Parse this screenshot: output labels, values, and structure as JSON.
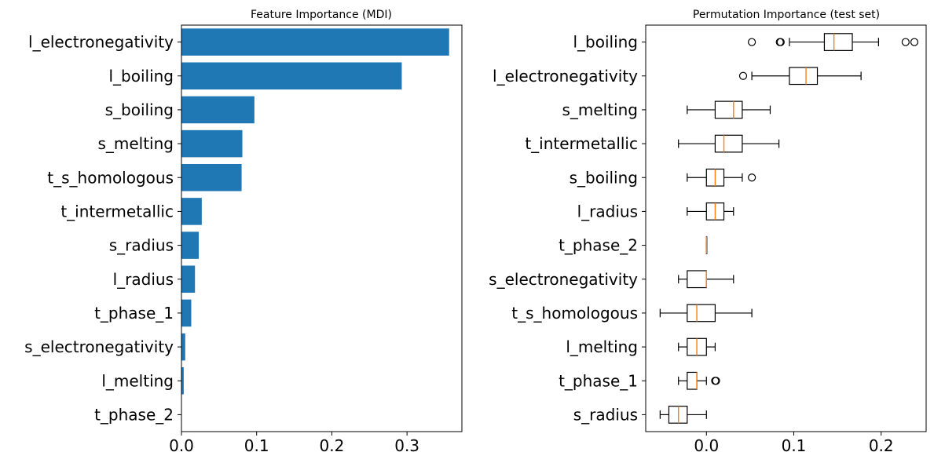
{
  "chart_data": [
    {
      "type": "bar",
      "orientation": "horizontal",
      "title": "Feature Importance (MDI)",
      "xlabel": "",
      "ylabel": "",
      "xlim": [
        0,
        0.373
      ],
      "xticks": [
        "0.0",
        "0.1",
        "0.2",
        "0.3"
      ],
      "xtick_values": [
        0.0,
        0.1,
        0.2,
        0.3
      ],
      "color": "#1f77b4",
      "categories": [
        "l_electronegativity",
        "l_boiling",
        "s_boiling",
        "s_melting",
        "t_s_homologous",
        "t_intermetallic",
        "s_radius",
        "l_radius",
        "t_phase_1",
        "s_electronegativity",
        "l_melting",
        "t_phase_2"
      ],
      "values": [
        0.356,
        0.293,
        0.097,
        0.081,
        0.08,
        0.027,
        0.023,
        0.018,
        0.013,
        0.005,
        0.003,
        0.0
      ]
    },
    {
      "type": "box",
      "orientation": "horizontal",
      "title": "Permutation Importance (test set)",
      "xlabel": "",
      "ylabel": "",
      "xlim": [
        -0.0695,
        0.2515
      ],
      "xticks": [
        "0.0",
        "0.1",
        "0.2"
      ],
      "xtick_values": [
        0.0,
        0.1,
        0.2
      ],
      "box_color": "#000000",
      "median_color": "#ff7f0e",
      "categories": [
        "l_boiling",
        "l_electronegativity",
        "s_melting",
        "t_intermetallic",
        "s_boiling",
        "l_radius",
        "t_phase_2",
        "s_electronegativity",
        "t_s_homologous",
        "l_melting",
        "t_phase_1",
        "s_radius"
      ],
      "boxes": [
        {
          "whislo": 0.095,
          "q1": 0.135,
          "med": 0.146,
          "q3": 0.167,
          "whishi": 0.197,
          "fliers": [
            0.052,
            0.084,
            0.085,
            0.228,
            0.238
          ]
        },
        {
          "whislo": 0.052,
          "q1": 0.095,
          "med": 0.114,
          "q3": 0.127,
          "whishi": 0.177,
          "fliers": [
            0.042
          ]
        },
        {
          "whislo": -0.022,
          "q1": 0.01,
          "med": 0.031,
          "q3": 0.041,
          "whishi": 0.073,
          "fliers": []
        },
        {
          "whislo": -0.032,
          "q1": 0.01,
          "med": 0.02,
          "q3": 0.041,
          "whishi": 0.083,
          "fliers": []
        },
        {
          "whislo": -0.022,
          "q1": 0.0,
          "med": 0.01,
          "q3": 0.02,
          "whishi": 0.041,
          "fliers": [
            0.052
          ]
        },
        {
          "whislo": -0.022,
          "q1": 0.0,
          "med": 0.01,
          "q3": 0.02,
          "whishi": 0.031,
          "fliers": []
        },
        {
          "whislo": 0.0,
          "q1": 0.0,
          "med": 0.0,
          "q3": 0.0,
          "whishi": 0.0,
          "fliers": []
        },
        {
          "whislo": -0.032,
          "q1": -0.022,
          "med": 0.0,
          "q3": 0.0,
          "whishi": 0.031,
          "fliers": []
        },
        {
          "whislo": -0.053,
          "q1": -0.022,
          "med": -0.011,
          "q3": 0.01,
          "whishi": 0.052,
          "fliers": []
        },
        {
          "whislo": -0.032,
          "q1": -0.022,
          "med": -0.011,
          "q3": 0.0,
          "whishi": 0.01,
          "fliers": []
        },
        {
          "whislo": -0.032,
          "q1": -0.022,
          "med": -0.011,
          "q3": -0.011,
          "whishi": 0.0,
          "fliers": [
            0.01,
            0.011
          ]
        },
        {
          "whislo": -0.053,
          "q1": -0.043,
          "med": -0.032,
          "q3": -0.022,
          "whishi": 0.0,
          "fliers": []
        }
      ]
    }
  ]
}
